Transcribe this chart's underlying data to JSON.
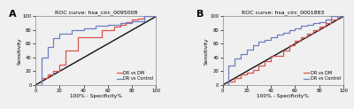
{
  "panel_A_title": "ROC curve: hsa_circ_0095008",
  "panel_B_title": "ROC curve: hsa_circ_0001883",
  "xlabel": "100% - Specificity%",
  "ylabel": "Sensitivity",
  "panel_label_A": "A",
  "panel_label_B": "B",
  "legend_dr_dm": "DR vs DM",
  "legend_dr_ctrl": "DR vs Control",
  "color_dr_dm": "#d9534f",
  "color_dr_ctrl": "#6e7fc2",
  "color_diagonal": "#111111",
  "tick_labels": [
    "0",
    "20",
    "40",
    "60",
    "80",
    "100"
  ],
  "tick_values": [
    0,
    20,
    40,
    60,
    80,
    100
  ],
  "xlim": [
    0,
    100
  ],
  "ylim": [
    0,
    100
  ],
  "A_dm_x": [
    0,
    5,
    5,
    10,
    10,
    15,
    15,
    20,
    20,
    25,
    25,
    35,
    35,
    55,
    55,
    65,
    65,
    70,
    70,
    75,
    75,
    80,
    80,
    85,
    85,
    90,
    90,
    100
  ],
  "A_dm_y": [
    0,
    0,
    10,
    10,
    15,
    15,
    20,
    20,
    30,
    30,
    50,
    50,
    70,
    70,
    80,
    80,
    85,
    85,
    88,
    88,
    92,
    92,
    95,
    95,
    97,
    97,
    100,
    100
  ],
  "A_ctrl_x": [
    0,
    5,
    5,
    10,
    10,
    15,
    15,
    20,
    20,
    30,
    30,
    40,
    40,
    50,
    50,
    60,
    60,
    70,
    70,
    80,
    80,
    90,
    90,
    100
  ],
  "A_ctrl_y": [
    0,
    0,
    40,
    40,
    55,
    55,
    68,
    68,
    75,
    75,
    80,
    80,
    83,
    83,
    86,
    86,
    88,
    88,
    90,
    90,
    93,
    93,
    100,
    100
  ],
  "B_dm_x": [
    0,
    5,
    5,
    10,
    10,
    15,
    15,
    20,
    20,
    25,
    25,
    30,
    30,
    35,
    35,
    40,
    40,
    50,
    50,
    55,
    55,
    60,
    60,
    65,
    65,
    70,
    70,
    75,
    75,
    80,
    80,
    85,
    85,
    90,
    90,
    95,
    95,
    100
  ],
  "B_dm_y": [
    0,
    0,
    5,
    5,
    10,
    10,
    15,
    15,
    18,
    18,
    22,
    22,
    28,
    28,
    35,
    35,
    42,
    42,
    50,
    50,
    58,
    58,
    65,
    65,
    70,
    70,
    75,
    75,
    80,
    80,
    85,
    85,
    90,
    90,
    95,
    95,
    100,
    100
  ],
  "B_ctrl_x": [
    0,
    5,
    5,
    10,
    10,
    15,
    15,
    20,
    20,
    25,
    25,
    30,
    30,
    35,
    35,
    40,
    40,
    45,
    45,
    50,
    50,
    55,
    55,
    60,
    60,
    65,
    65,
    70,
    70,
    75,
    75,
    80,
    80,
    85,
    85,
    90,
    90,
    100
  ],
  "B_ctrl_y": [
    0,
    0,
    28,
    28,
    38,
    38,
    45,
    45,
    52,
    52,
    58,
    58,
    63,
    63,
    66,
    66,
    70,
    70,
    73,
    73,
    76,
    76,
    80,
    80,
    83,
    83,
    86,
    86,
    88,
    88,
    90,
    90,
    92,
    92,
    95,
    95,
    100,
    100
  ],
  "bg_color": "#f0f0f0",
  "fig_bg": "#f0f0f0"
}
